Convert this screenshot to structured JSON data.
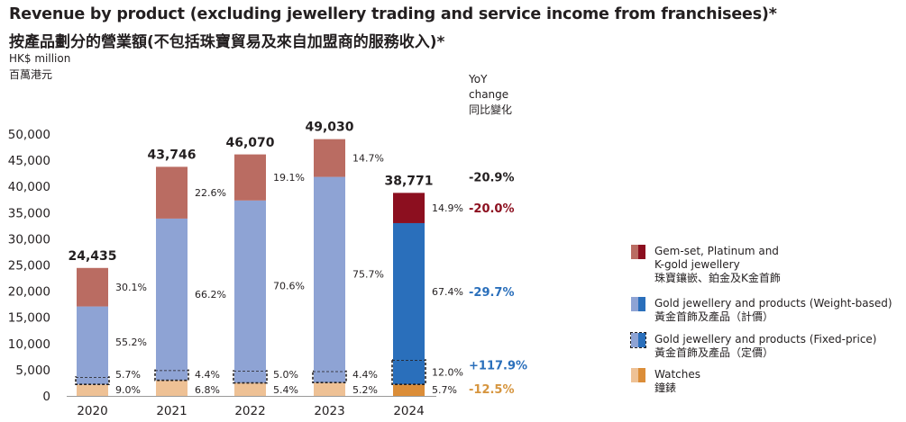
{
  "header": {
    "title_en": "Revenue by product (excluding jewellery trading and service income from franchisees)*",
    "title_zh": "按產品劃分的營業額(不包括珠寶貿易及來自加盟商的服務收入)*",
    "unit_en": "HK$ million",
    "unit_zh": "百萬港元",
    "yoy_head": [
      "YoY",
      "change",
      "同比變化"
    ]
  },
  "colors": {
    "gem_light": "#ba6c62",
    "gem_dark": "#8c0f1f",
    "gold_wt_light": "#8ea3d4",
    "gold_wt_dark": "#2a6fbb",
    "gold_fx_light": "#8ea3d4",
    "gold_fx_dark": "#2a6fbb",
    "watch_light": "#eec195",
    "watch_dark": "#db8d38",
    "yoy_black": "#231f20",
    "yoy_red": "#8c0f1f",
    "yoy_blue": "#2a6fbb",
    "yoy_orange": "#d6953e"
  },
  "legend": [
    {
      "key": "gem",
      "en_lines": [
        "Gem-set, Platinum and",
        "K-gold jewellery"
      ],
      "zh": "珠寶鑲嵌、鉑金及K金首飾"
    },
    {
      "key": "gold_wt",
      "en_lines": [
        "Gold jewellery and products (Weight-based)"
      ],
      "zh": "黃金首飾及產品（計價）"
    },
    {
      "key": "gold_fx",
      "en_lines": [
        "Gold jewellery and products (Fixed-price)"
      ],
      "zh": "黃金首飾及產品（定價）"
    },
    {
      "key": "watch",
      "en_lines": [
        "Watches"
      ],
      "zh": "鐘錶"
    }
  ],
  "chart_data": {
    "type": "bar",
    "stacked": true,
    "categories": [
      "2020",
      "2021",
      "2022",
      "2023",
      "2024"
    ],
    "totals": [
      24435,
      43746,
      46070,
      49030,
      38771
    ],
    "total_labels": [
      "24,435",
      "43,746",
      "46,070",
      "49,030",
      "38,771"
    ],
    "series": [
      {
        "name": "Watches",
        "key": "watch",
        "percent": [
          9.0,
          6.8,
          5.4,
          5.2,
          5.7
        ],
        "labels": [
          "9.0%",
          "6.8%",
          "5.4%",
          "5.2%",
          "5.7%"
        ]
      },
      {
        "name": "Gold jewellery and products (Fixed-price)",
        "key": "gold_fx",
        "percent": [
          5.7,
          4.4,
          5.0,
          4.4,
          12.0
        ],
        "labels": [
          "5.7%",
          "4.4%",
          "5.0%",
          "4.4%",
          "12.0%"
        ]
      },
      {
        "name": "Gold jewellery and products (Weight-based)",
        "key": "gold_wt",
        "percent": [
          55.2,
          66.2,
          70.6,
          75.7,
          67.4
        ],
        "labels": [
          "55.2%",
          "66.2%",
          "70.6%",
          "75.7%",
          "67.4%"
        ]
      },
      {
        "name": "Gem-set, Platinum and K-gold jewellery",
        "key": "gem",
        "percent": [
          30.1,
          22.6,
          19.1,
          14.7,
          14.9
        ],
        "labels": [
          "30.1%",
          "22.6%",
          "19.1%",
          "14.7%",
          "14.9%"
        ]
      }
    ],
    "yoy": [
      {
        "text": "-20.9%",
        "color": "yoy_black",
        "level": "total"
      },
      {
        "text": "-20.0%",
        "color": "yoy_red",
        "level": "gem"
      },
      {
        "text": "-29.7%",
        "color": "yoy_blue",
        "level": "gold_wt"
      },
      {
        "text": "+117.9%",
        "color": "yoy_blue",
        "level": "gold_fx"
      },
      {
        "text": "-12.5%",
        "color": "yoy_orange",
        "level": "watch"
      }
    ],
    "y_ticks": [
      "0",
      "5,000",
      "10,000",
      "15,000",
      "20,000",
      "25,000",
      "30,000",
      "35,000",
      "40,000",
      "45,000",
      "50,000"
    ],
    "ylim": [
      0,
      50000
    ],
    "grid": false
  }
}
